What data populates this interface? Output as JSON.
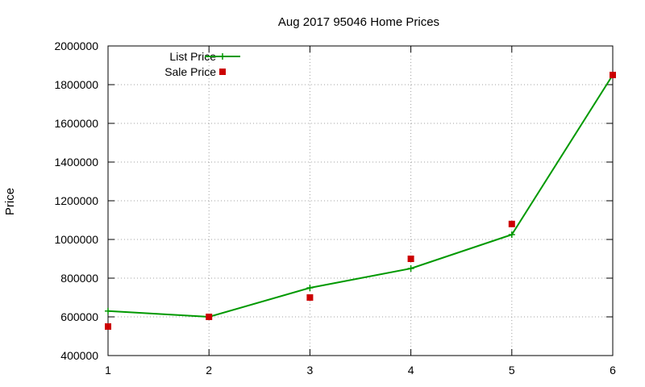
{
  "chart_data": {
    "type": "line",
    "title": "Aug 2017 95046 Home Prices",
    "xlabel": "",
    "ylabel": "Price",
    "x": [
      1,
      2,
      3,
      4,
      5,
      6
    ],
    "xlim": [
      1,
      6
    ],
    "ylim": [
      400000,
      2000000
    ],
    "xticks": [
      "1",
      "2",
      "3",
      "4",
      "5",
      "6"
    ],
    "yticks": [
      "400000",
      "600000",
      "800000",
      "1000000",
      "1200000",
      "1400000",
      "1600000",
      "1800000",
      "2000000"
    ],
    "grid": true,
    "legend_position": "top-left",
    "series": [
      {
        "name": "List Price",
        "style": "linespoints",
        "marker": "plus",
        "color": "#009900",
        "values": [
          630000,
          600000,
          750000,
          850000,
          1025000,
          1850000
        ]
      },
      {
        "name": "Sale Price",
        "style": "points",
        "marker": "square",
        "color": "#cc0000",
        "values": [
          550000,
          600000,
          700000,
          900000,
          1080000,
          1850000
        ]
      }
    ]
  }
}
